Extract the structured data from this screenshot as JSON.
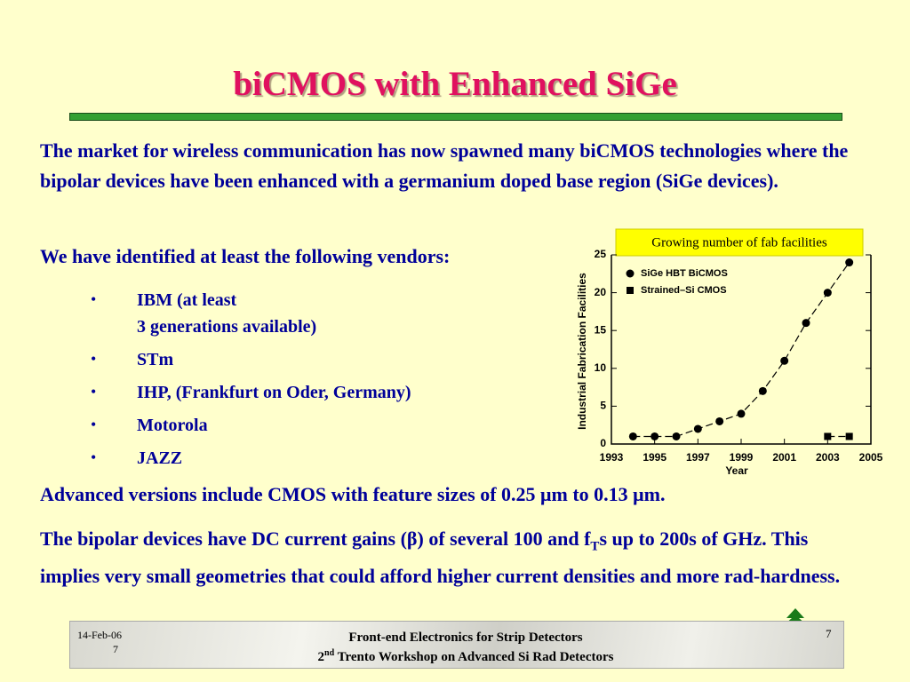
{
  "title": "biCMOS with Enhanced SiGe",
  "intro": "The market for wireless communication has now spawned many biCMOS technologies where the bipolar devices have been enhanced with a germanium doped base region (SiGe devices).",
  "vendors_intro": "We have identified at least the following vendors:",
  "bullets": [
    [
      "IBM (at least",
      "3 generations available)"
    ],
    [
      "STm"
    ],
    [
      "IHP, (Frankfurt on Oder, Germany)"
    ],
    [
      "Motorola"
    ],
    [
      "JAZZ"
    ]
  ],
  "advanced": "Advanced versions include CMOS with feature sizes of 0.25 μm to 0.13 μm.",
  "bipolar": [
    "The bipolar devices have DC current gains (β) of several 100 and f",
    "T",
    "s up to 200s of GHz.  This implies very small geometries that could afford higher current densities and more rad-hardness."
  ],
  "footer": {
    "date": "14-Feb-06",
    "slide_left": "7",
    "line1": "Front-end Electronics for Strip Detectors",
    "line2": [
      "2",
      "nd",
      " Trento Workshop on Advanced Si Rad Detectors"
    ],
    "slide_right": "7"
  },
  "chart_data": {
    "type": "scatter",
    "annotation": "Growing number of fab facilities",
    "xlabel": "Year",
    "ylabel": "Industrial Fabrication Facilities",
    "xlim": [
      1993,
      2005
    ],
    "xticks": [
      1993,
      1995,
      1997,
      1999,
      2001,
      2003,
      2005
    ],
    "ylim": [
      0,
      25
    ],
    "yticks": [
      0,
      5,
      10,
      15,
      20,
      25
    ],
    "grid": false,
    "legend": "upper left",
    "series": [
      {
        "name": "SiGe HBT BiCMOS",
        "color": "#000000",
        "marker": "circle",
        "x": [
          1994,
          1995,
          1996,
          1997,
          1998,
          1999,
          2000,
          2001,
          2002,
          2003,
          2004
        ],
        "values": [
          1,
          1,
          1,
          2,
          3,
          4,
          7,
          11,
          16,
          20,
          24
        ]
      },
      {
        "name": "Strained–Si CMOS",
        "color": "#000000",
        "marker": "square",
        "x": [
          2003,
          2004
        ],
        "values": [
          1,
          1
        ]
      }
    ]
  }
}
